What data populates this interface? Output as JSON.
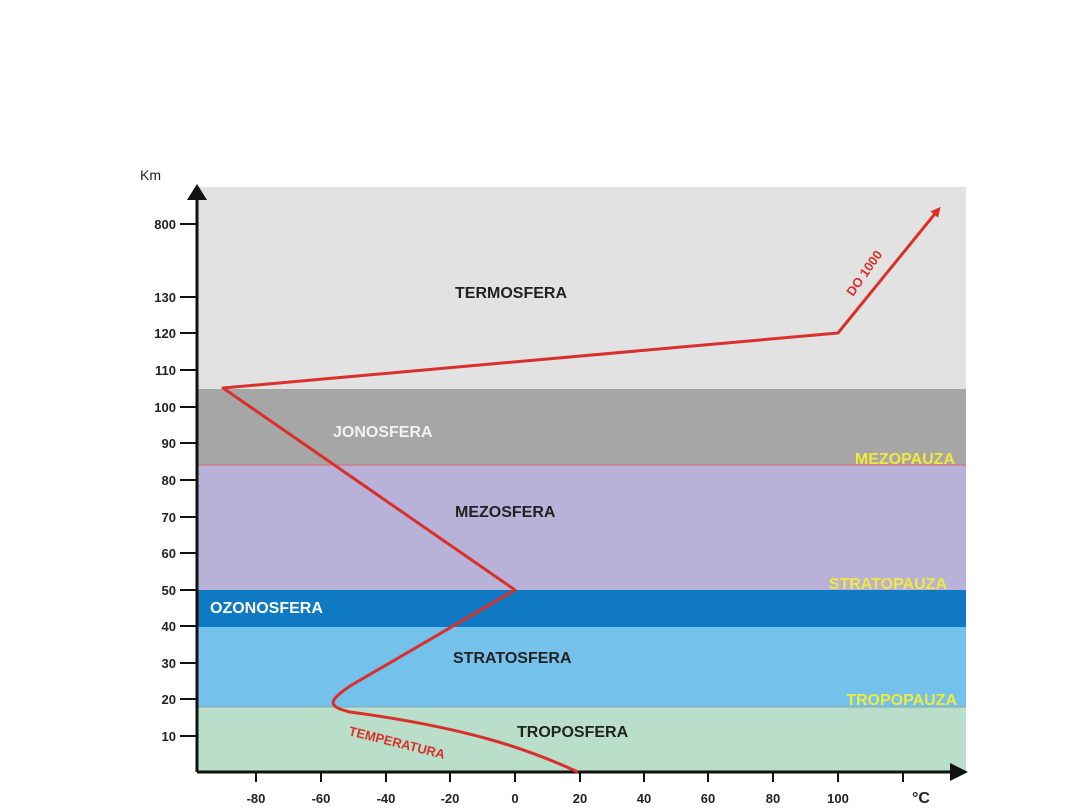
{
  "y_unit": "Km",
  "x_unit": "°C",
  "y_ticks": [
    "800",
    "130",
    "120",
    "110",
    "100",
    "90",
    "80",
    "70",
    "60",
    "50",
    "40",
    "30",
    "20",
    "10"
  ],
  "x_ticks": [
    "-80",
    "-60",
    "-40",
    "-20",
    "0",
    "20",
    "40",
    "60",
    "80",
    "100"
  ],
  "layers": {
    "termosfera": {
      "label": "TERMOSFERA",
      "color": "#e2e2e2"
    },
    "jonosfera": {
      "label": "JONOSFERA",
      "color": "#a6a6a6"
    },
    "mezosfera": {
      "label": "MEZOSFERA",
      "color": "#b8b1d8"
    },
    "ozonosfera": {
      "label": "OZONOSFERA",
      "color": "#0f79c4"
    },
    "stratosfera": {
      "label": "STRATOSFERA",
      "color": "#74c1ec"
    },
    "troposfera": {
      "label": "TROPOSFERA",
      "color": "#b9dec9"
    }
  },
  "boundaries": {
    "mezopauza": "MEZOPAUZA",
    "stratopauza": "STRATOPAUZA",
    "tropopauza": "TROPOPAUZA"
  },
  "curve_labels": {
    "temperatura": "TEMPERATURA",
    "do1000": "DO 1000"
  },
  "colors": {
    "curve": "#d9302c",
    "pause_label": "#f2ea3a"
  }
}
